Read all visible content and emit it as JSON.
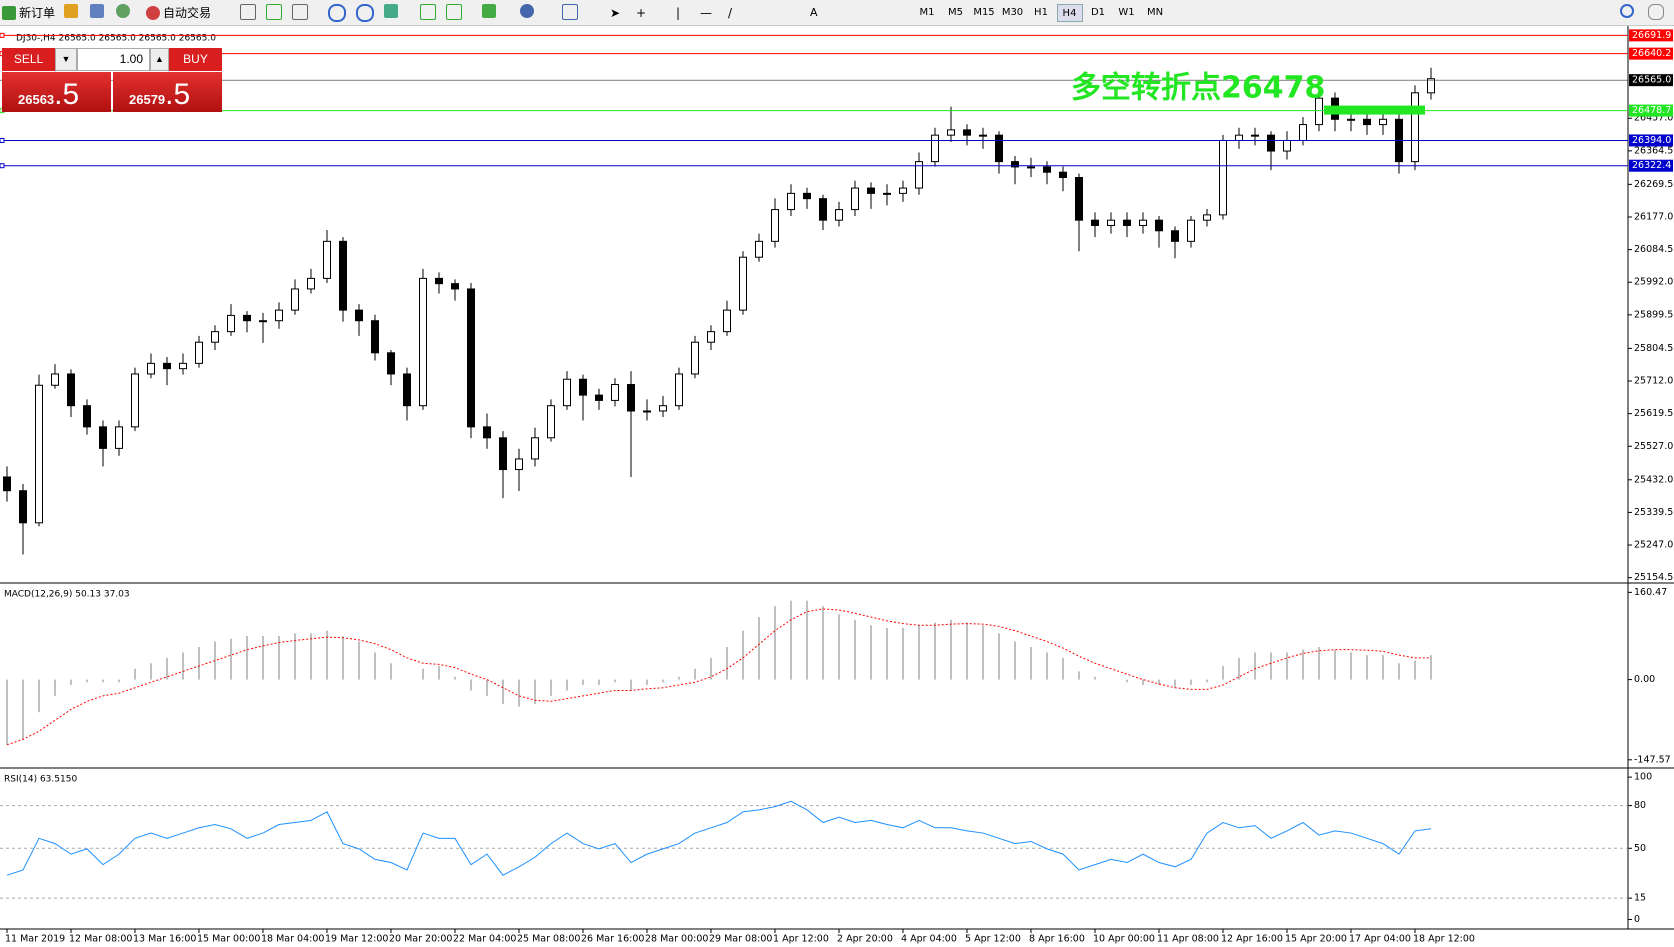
{
  "toolbar": {
    "new_order": "新订单",
    "auto_trading": "自动交易",
    "timeframes": [
      "M1",
      "M5",
      "M15",
      "M30",
      "H1",
      "H4",
      "D1",
      "W1",
      "MN"
    ],
    "active_timeframe": "H4"
  },
  "trade_panel": {
    "sell": "SELL",
    "buy": "BUY",
    "lots": "1.00",
    "bid_main": "26563",
    "bid_pips": ".5",
    "ask_main": "26579",
    "ask_pips": ".5"
  },
  "chart_data": [
    {
      "type": "candlestick",
      "title": "DJ30-,H4  26565.0 26565.0 26565.0 26565.0",
      "annotation": "多空转折点26478",
      "annotation_color": "#22e622",
      "categories": [
        "11 Mar 2019",
        null,
        null,
        null,
        "12 Mar 08:00",
        null,
        null,
        null,
        "13 Mar 16:00",
        null,
        null,
        null,
        "15 Mar 00:00",
        null,
        null,
        null,
        "18 Mar 04:00",
        null,
        null,
        null,
        "19 Mar 12:00",
        null,
        null,
        null,
        "20 Mar 20:00",
        null,
        null,
        null,
        "22 Mar 04:00",
        null,
        null,
        null,
        "25 Mar 08:00",
        null,
        null,
        null,
        "26 Mar 16:00",
        null,
        null,
        null,
        "28 Mar 00:00",
        null,
        null,
        null,
        "29 Mar 08:00",
        null,
        null,
        null,
        "1 Apr 12:00",
        null,
        null,
        null,
        "2 Apr 20:00",
        null,
        null,
        null,
        "4 Apr 04:00",
        null,
        null,
        null,
        "5 Apr 12:00",
        null,
        null,
        null,
        "8 Apr 16:00",
        null,
        null,
        null,
        "10 Apr 00:00",
        null,
        null,
        null,
        "11 Apr 08:00",
        null,
        null,
        null,
        "12 Apr 16:00",
        null,
        null,
        null,
        "15 Apr 20:00",
        null,
        null,
        null,
        "17 Apr 04:00",
        null,
        null,
        null,
        "18 Apr 12:00",
        null
      ],
      "open": [
        25440,
        25401,
        25310,
        25700,
        25732,
        25642,
        25582,
        25521,
        25582,
        25732,
        25762,
        25747,
        25762,
        25822,
        25852,
        25898,
        25883,
        25883,
        25913,
        25973,
        26003,
        26108,
        25913,
        25883,
        25792,
        25732,
        25642,
        26003,
        25988,
        25973,
        25582,
        25551,
        25461,
        25491,
        25551,
        25642,
        25717,
        25672,
        25657,
        25702,
        25627,
        25627,
        25642,
        25732,
        25822,
        25852,
        25913,
        26063,
        26108,
        26198,
        26244,
        26229,
        26168,
        26198,
        26259,
        26244,
        26244,
        26259,
        26334,
        26409,
        26424,
        26409,
        26409,
        26334,
        26319,
        26319,
        26304,
        26289,
        26168,
        26153,
        26168,
        26153,
        26168,
        26138,
        26108,
        26168,
        26183,
        26394,
        26409,
        26409,
        26364,
        26394,
        26439,
        26514,
        26454,
        26454,
        26439,
        26454,
        26334,
        26529
      ],
      "high": [
        25470,
        25420,
        25730,
        25760,
        25745,
        25660,
        25600,
        25600,
        25750,
        25790,
        25780,
        25790,
        25840,
        25870,
        25930,
        25910,
        25905,
        25935,
        26000,
        26030,
        26140,
        26120,
        25930,
        25900,
        25800,
        25750,
        26030,
        26020,
        26000,
        25990,
        25620,
        25570,
        25520,
        25580,
        25660,
        25740,
        25730,
        25690,
        25720,
        25740,
        25660,
        25670,
        25750,
        25840,
        25870,
        25940,
        26080,
        26130,
        26230,
        26270,
        26260,
        26240,
        26220,
        26280,
        26275,
        26270,
        26280,
        26360,
        26430,
        26490,
        26440,
        26430,
        26420,
        26350,
        26345,
        26335,
        26320,
        26300,
        26190,
        26190,
        26190,
        26190,
        26180,
        26150,
        26180,
        26200,
        26410,
        26430,
        26430,
        26420,
        26420,
        26460,
        26540,
        26530,
        26475,
        26490,
        26480,
        26470,
        26550,
        26600
      ],
      "low": [
        25370,
        25220,
        25300,
        25690,
        25610,
        25560,
        25470,
        25500,
        25570,
        25720,
        25700,
        25730,
        25750,
        25800,
        25840,
        25850,
        25820,
        25860,
        25900,
        25960,
        25990,
        25880,
        25840,
        25770,
        25700,
        25600,
        25630,
        25960,
        25940,
        25550,
        25520,
        25380,
        25400,
        25470,
        25540,
        25630,
        25600,
        25630,
        25640,
        25440,
        25600,
        25610,
        25630,
        25720,
        25800,
        25840,
        25900,
        26050,
        26090,
        26180,
        26200,
        26140,
        26150,
        26180,
        26200,
        26210,
        26220,
        26240,
        26320,
        26390,
        26380,
        26370,
        26300,
        26270,
        26290,
        26270,
        26250,
        26080,
        26120,
        26130,
        26120,
        26130,
        26090,
        26060,
        26090,
        26150,
        26170,
        26370,
        26380,
        26310,
        26340,
        26380,
        26420,
        26420,
        26420,
        26410,
        26410,
        26300,
        26310,
        26510
      ],
      "close": [
        25401,
        25310,
        25700,
        25732,
        25642,
        25582,
        25521,
        25582,
        25732,
        25762,
        25747,
        25762,
        25822,
        25852,
        25898,
        25883,
        25883,
        25913,
        25973,
        26003,
        26108,
        25913,
        25883,
        25792,
        25732,
        25642,
        26003,
        25988,
        25973,
        25582,
        25551,
        25461,
        25491,
        25551,
        25642,
        25717,
        25672,
        25657,
        25702,
        25627,
        25627,
        25642,
        25732,
        25822,
        25852,
        25913,
        26063,
        26108,
        26198,
        26244,
        26229,
        26168,
        26198,
        26259,
        26244,
        26244,
        26259,
        26334,
        26409,
        26424,
        26409,
        26409,
        26334,
        26319,
        26319,
        26304,
        26289,
        26168,
        26153,
        26168,
        26153,
        26168,
        26138,
        26108,
        26168,
        26183,
        26394,
        26409,
        26409,
        26364,
        26394,
        26439,
        26514,
        26454,
        26454,
        26439,
        26454,
        26334,
        26529,
        26569
      ],
      "bull_color": "#ffffff",
      "bear_color": "#000000",
      "ylim": [
        25145,
        26710
      ],
      "yticks": [
        25154.5,
        {
          "value": 25247,
          "label": "25247.0"
        },
        25339.5,
        {
          "value": 25432,
          "label": "25432.0"
        },
        {
          "value": 25527,
          "label": "25527.0"
        },
        25619.5,
        {
          "value": 25712,
          "label": "25712.0"
        },
        25804.5,
        25899.5,
        {
          "value": 25992,
          "label": "25992.0"
        },
        26084.5,
        {
          "value": 26177,
          "label": "26177.0"
        },
        26269.5,
        26364.5,
        {
          "value": 26457,
          "label": "26457.0"
        }
      ],
      "levels": [
        {
          "value": 26691.9,
          "color": "#ff0000"
        },
        {
          "value": 26640.2,
          "color": "#ff0000"
        },
        {
          "value": 26565,
          "label": "26565.0",
          "color": "#000000"
        },
        {
          "value": 26478.7,
          "color": "#22e622"
        },
        {
          "value": 26394,
          "label": "26394.0",
          "color": "#0000cc"
        },
        {
          "value": 26322.4,
          "color": "#0000cc"
        }
      ]
    },
    {
      "type": "macd",
      "title": "MACD(12,26,9) 50.13 37.03",
      "histogram_color": "#c0c0c0",
      "signal_color": "#ff0000",
      "histogram": [
        -120,
        -110,
        -60,
        -30,
        -10,
        -5,
        -5,
        -5,
        20,
        30,
        40,
        50,
        60,
        70,
        75,
        80,
        80,
        80,
        85,
        85,
        90,
        80,
        70,
        50,
        30,
        0,
        20,
        25,
        5,
        -20,
        -30,
        -45,
        -50,
        -45,
        -30,
        -20,
        -10,
        -10,
        -5,
        -20,
        -10,
        -5,
        5,
        20,
        40,
        60,
        90,
        115,
        135,
        145,
        145,
        135,
        120,
        110,
        100,
        95,
        95,
        100,
        105,
        110,
        105,
        100,
        85,
        70,
        60,
        50,
        40,
        15,
        5,
        0,
        -5,
        -10,
        -10,
        -15,
        -10,
        -5,
        25,
        40,
        50,
        50,
        50,
        55,
        60,
        55,
        50,
        45,
        45,
        30,
        35,
        45
      ],
      "signal": [
        -120,
        -110,
        -95,
        -75,
        -55,
        -40,
        -30,
        -25,
        -15,
        -5,
        5,
        15,
        25,
        35,
        45,
        55,
        62,
        68,
        72,
        75,
        78,
        77,
        73,
        66,
        55,
        40,
        30,
        28,
        22,
        10,
        0,
        -15,
        -30,
        -38,
        -40,
        -35,
        -30,
        -25,
        -20,
        -20,
        -17,
        -15,
        -10,
        -5,
        5,
        20,
        40,
        65,
        90,
        110,
        125,
        130,
        128,
        122,
        115,
        108,
        103,
        100,
        100,
        102,
        103,
        102,
        98,
        90,
        80,
        70,
        58,
        43,
        30,
        20,
        10,
        0,
        -8,
        -15,
        -18,
        -18,
        -10,
        5,
        20,
        30,
        40,
        48,
        53,
        55,
        55,
        54,
        52,
        45,
        40,
        40
      ],
      "ylim": [
        -159,
        174
      ],
      "yticks": [
        160.47,
        {
          "value": 0,
          "label": "0.00"
        },
        -147.57
      ]
    },
    {
      "type": "rsi",
      "title": "RSI(14) 63.5150",
      "color": "#1e90ff",
      "values": [
        31.1,
        34.8,
        57.0,
        53.3,
        45.9,
        49.6,
        38.5,
        45.9,
        57.0,
        60.7,
        57.0,
        60.7,
        64.4,
        66.7,
        63.7,
        57.0,
        60.7,
        66.7,
        68.1,
        69.6,
        75.6,
        53.3,
        49.6,
        42.2,
        40.0,
        34.8,
        60.7,
        57.0,
        57.0,
        38.5,
        45.9,
        31.1,
        37.0,
        43.7,
        53.3,
        60.7,
        53.3,
        49.6,
        53.3,
        40.0,
        45.9,
        49.6,
        53.3,
        60.7,
        64.4,
        68.1,
        75.6,
        77.0,
        79.3,
        83.0,
        77.0,
        68.1,
        71.9,
        68.1,
        69.6,
        66.7,
        64.4,
        69.6,
        64.4,
        64.4,
        62.2,
        60.7,
        57.0,
        53.3,
        54.8,
        49.6,
        45.9,
        34.8,
        38.5,
        42.2,
        40.0,
        45.9,
        40.0,
        37.0,
        42.2,
        60.7,
        68.1,
        64.4,
        65.9,
        57.0,
        62.2,
        68.1,
        59.3,
        62.2,
        60.7,
        57.0,
        53.3,
        45.9,
        62.2,
        63.7
      ],
      "ylim": [
        -6,
        105
      ],
      "yticks": [
        100,
        80,
        50,
        15,
        0
      ]
    }
  ]
}
